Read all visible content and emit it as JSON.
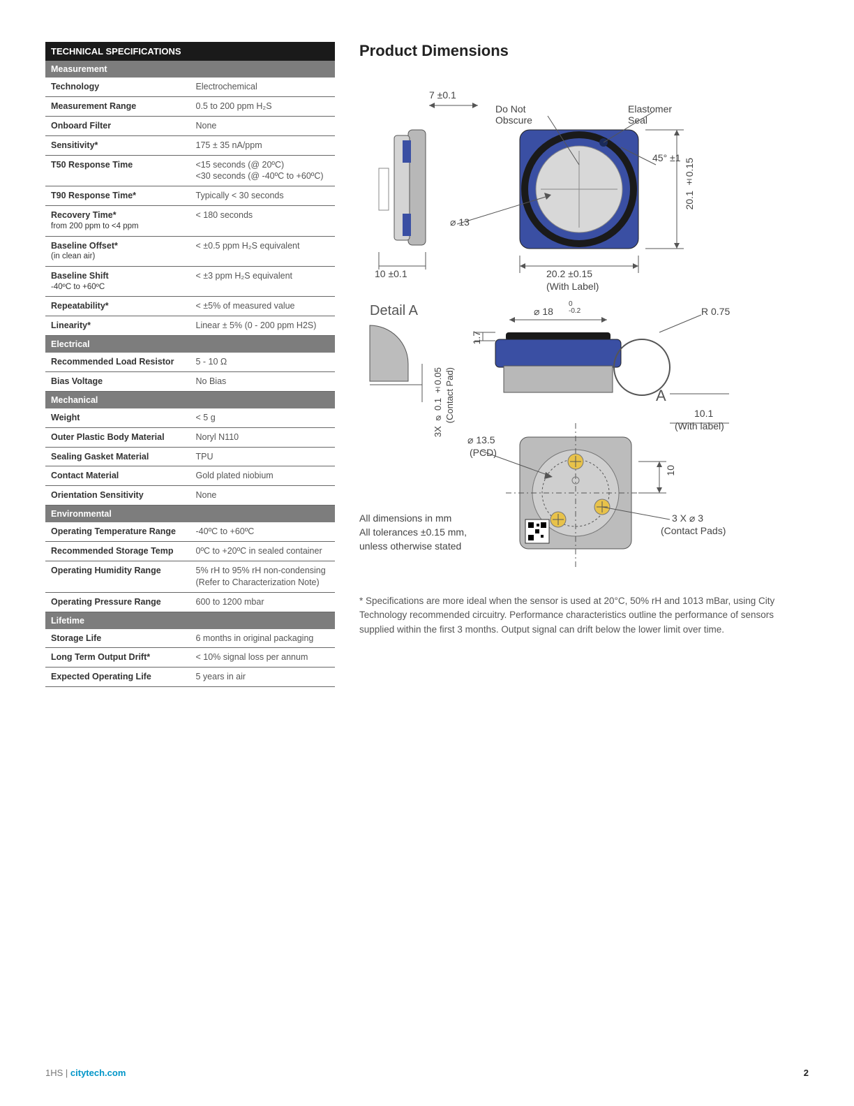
{
  "table": {
    "title": "TECHNICAL SPECIFICATIONS",
    "sections": [
      {
        "name": "Measurement",
        "rows": [
          {
            "label": "Technology",
            "value": "Electrochemical"
          },
          {
            "label": "Measurement Range",
            "value": "0.5 to 200 ppm H₂S"
          },
          {
            "label": "Onboard Filter",
            "value": "None"
          },
          {
            "label": "Sensitivity*",
            "value": "175 ± 35 nA/ppm"
          },
          {
            "label": "T50 Response Time",
            "value": "<15 seconds (@ 20ºC)\n<30 seconds (@ -40ºC to +60ºC)"
          },
          {
            "label": "T90 Response Time*",
            "value": "Typically < 30 seconds"
          },
          {
            "label": "Recovery Time*",
            "sub": "from 200 ppm to <4 ppm",
            "value": "< 180 seconds"
          },
          {
            "label": "Baseline Offset*",
            "sub": "(in clean air)",
            "value": "< ±0.5 ppm H₂S equivalent"
          },
          {
            "label": "Baseline Shift",
            "sub": "-40ºC to +60ºC",
            "value": "< ±3 ppm H₂S equivalent"
          },
          {
            "label": "Repeatability*",
            "value": "< ±5% of measured value"
          },
          {
            "label": "Linearity*",
            "value": "Linear ± 5% (0 - 200 ppm H2S)"
          }
        ]
      },
      {
        "name": "Electrical",
        "rows": [
          {
            "label": "Recommended Load Resistor",
            "value": "5 - 10 Ω"
          },
          {
            "label": "Bias Voltage",
            "value": "No Bias"
          }
        ]
      },
      {
        "name": "Mechanical",
        "rows": [
          {
            "label": "Weight",
            "value": "< 5 g"
          },
          {
            "label": "Outer Plastic Body Material",
            "value": "Noryl N110"
          },
          {
            "label": "Sealing Gasket Material",
            "value": "TPU"
          },
          {
            "label": "Contact Material",
            "value": "Gold plated niobium"
          },
          {
            "label": "Orientation Sensitivity",
            "value": "None"
          }
        ]
      },
      {
        "name": "Environmental",
        "rows": [
          {
            "label": "Operating Temperature Range",
            "value": "-40ºC to +60ºC"
          },
          {
            "label": "Recommended Storage Temp",
            "value": "0ºC to +20ºC in sealed container"
          },
          {
            "label": "Operating Humidity Range",
            "value": "5% rH to 95% rH non-condensing (Refer to Characterization Note)"
          },
          {
            "label": "Operating Pressure Range",
            "value": "600 to 1200 mbar"
          }
        ]
      },
      {
        "name": "Lifetime",
        "rows": [
          {
            "label": "Storage Life",
            "value": "6 months in original packaging"
          },
          {
            "label": "Long Term Output Drift*",
            "value": "< 10% signal loss per annum"
          },
          {
            "label": "Expected Operating Life",
            "value": "5 years in air"
          }
        ]
      }
    ]
  },
  "dimensions": {
    "title": "Product Dimensions",
    "labels": {
      "top_width": "7 ±0.1",
      "do_not_obscure": "Do Not\nObscure",
      "elastomer_seal": "Elastomer\nSeal",
      "angle": "45° ±1",
      "height_right": "20.1 ±0.15",
      "diam_13": "⌀ 13",
      "bottom_10": "10 ±0.1",
      "width_label": "20.2 ±0.15",
      "with_label": "(With Label)",
      "detail_a": "Detail A",
      "diam_18": "⌀ 18",
      "diam_18_tol": "0\n-0.2",
      "r075": "R 0.75",
      "h17": "1.7",
      "contact_pad_dim": "3X ⌀ 0.1 ±0.05",
      "contact_pad": "(Contact Pad)",
      "a_marker": "A",
      "ten_one": "10.1",
      "with_label2": "(With label)",
      "pcd": "⌀ 13.5",
      "pcd_sub": "(PCD)",
      "ten": "10",
      "pads": "3 X ⌀ 3",
      "pads_sub": "(Contact Pads)",
      "note1": "All dimensions in mm",
      "note2": "All tolerances ±0.15 mm,",
      "note3": "unless otherwise stated"
    },
    "colors": {
      "body_blue": "#3a4fa3",
      "body_grey": "#a8a8a8",
      "circle_grey": "#c8c8c8",
      "dark": "#333333",
      "line": "#555555"
    }
  },
  "footnote": "* Specifications are more ideal when the sensor is used at 20°C, 50% rH and 1013 mBar, using City Technology recommended circuitry. Performance characteristics outline the performance of sensors supplied within the first 3 months. Output signal can drift below the lower limit over time.",
  "footer": {
    "product": "1HS",
    "site": "citytech.com",
    "page": "2"
  }
}
